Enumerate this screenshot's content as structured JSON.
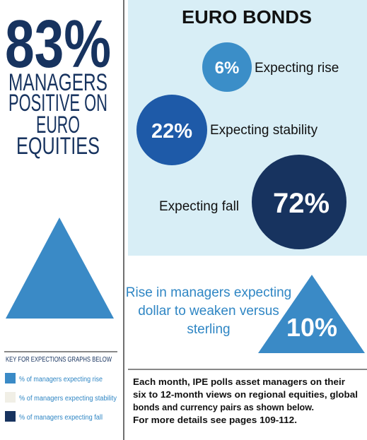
{
  "headline": {
    "figure": "83%",
    "lines": [
      "MANAGERS",
      "POSITIVE ON",
      "EURO",
      "EQUITIES"
    ]
  },
  "key": {
    "title": "KEY FOR EXPECTIONS GRAPHS BELOW",
    "items": [
      "% of managers expecting rise",
      "% of managers expecting stability",
      "% of managers expecting fall"
    ]
  },
  "euro_bonds": {
    "title": "EURO BONDS",
    "items": [
      {
        "value": "6%",
        "label": "Expecting rise"
      },
      {
        "value": "22%",
        "label": "Expecting stability"
      },
      {
        "value": "72%",
        "label": "Expecting fall"
      }
    ]
  },
  "dollar": {
    "lines": [
      "Rise in managers expecting",
      "dollar to weaken versus",
      "sterling"
    ],
    "value": "10%"
  },
  "note": {
    "lines": [
      "Each month, IPE polls asset managers on their",
      "six to 12-month views on regional equities, global",
      "bonds and currency pairs as shown below.",
      "For more details see pages 109-112."
    ]
  }
}
